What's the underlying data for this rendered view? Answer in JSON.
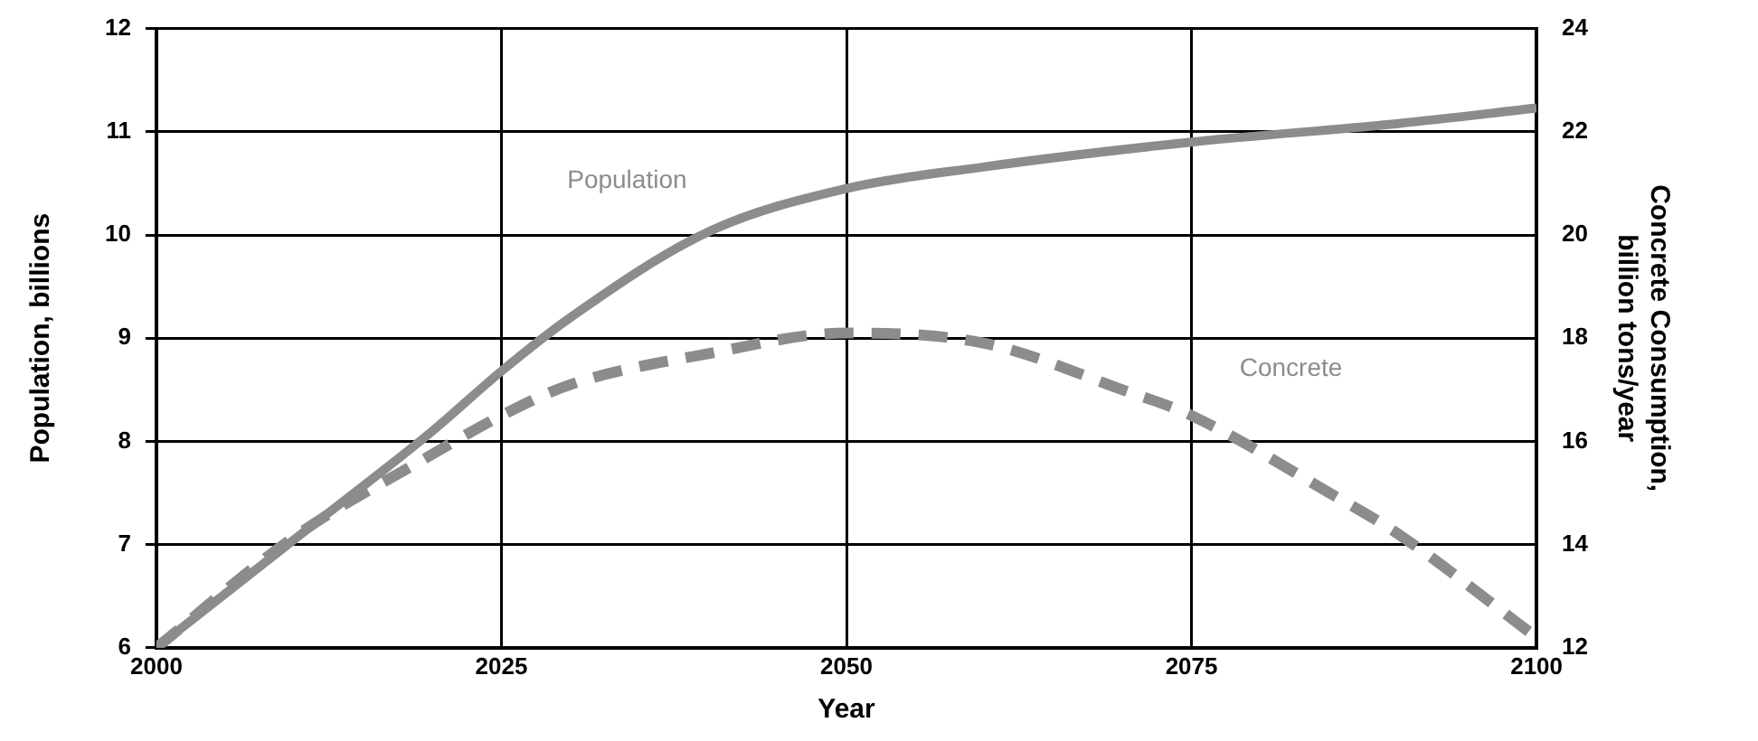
{
  "chart_data": {
    "type": "line",
    "xlabel": "Year",
    "ylabel": "Population, billions",
    "y2label": "Concrete Consumption, billion tons/year",
    "xlim": [
      2000,
      2100
    ],
    "xticks": [
      2000,
      2025,
      2050,
      2075,
      2100
    ],
    "ylim": [
      6,
      12
    ],
    "yticks": [
      6,
      7,
      8,
      9,
      10,
      11,
      12
    ],
    "y2lim": [
      12,
      24
    ],
    "y2ticks": [
      12,
      14,
      16,
      18,
      20,
      22,
      24
    ],
    "grid": true,
    "legend": false,
    "marker": "none",
    "series": [
      {
        "name": "Population",
        "color": "#8c8c8c",
        "line_style": "solid",
        "x": [
          2000,
          2010,
          2020,
          2025,
          2030,
          2040,
          2050,
          2060,
          2075,
          2090,
          2100
        ],
        "values": [
          6,
          7.05,
          8.1,
          8.68,
          9.2,
          10.03,
          10.45,
          10.66,
          10.9,
          11.08,
          11.23
        ]
      },
      {
        "name": "Concrete",
        "color": "#8c8c8c",
        "line_style": "dashed",
        "axis": "y2",
        "x": [
          2000,
          2010,
          2020,
          2025,
          2030,
          2040,
          2050,
          2060,
          2070,
          2075,
          2085,
          2090,
          2100
        ],
        "values": [
          12,
          14.15,
          15.75,
          16.5,
          17.1,
          17.7,
          18.1,
          17.9,
          17,
          16.5,
          15,
          14.2,
          12.2
        ]
      }
    ]
  }
}
